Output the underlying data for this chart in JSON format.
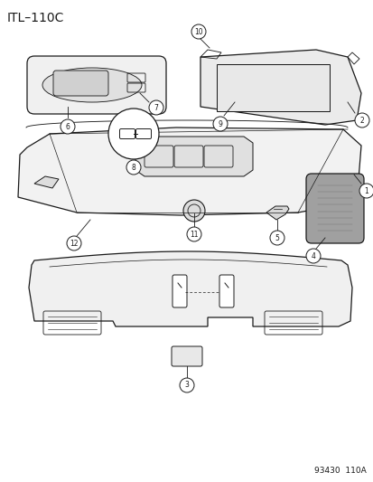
{
  "title": "ITL–110C",
  "footer": "93430  110A",
  "bg_color": "#ffffff",
  "lc": "#1a1a1a",
  "lw": 0.9,
  "title_fontsize": 10,
  "footer_fontsize": 6.5
}
